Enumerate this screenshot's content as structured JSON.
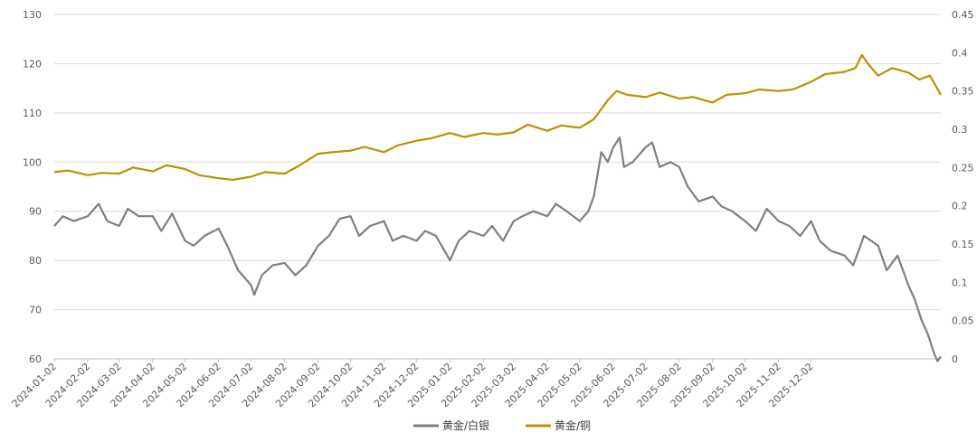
{
  "chart_data": {
    "type": "line",
    "title": "",
    "legend_position": "bottom",
    "grid": true,
    "x_ticks": [
      "2024-01-02",
      "2024-02-02",
      "2024-03-02",
      "2024-04-02",
      "2024-05-02",
      "2024-06-02",
      "2024-07-02",
      "2024-08-02",
      "2024-09-02",
      "2024-10-02",
      "2024-11-02",
      "2024-12-02",
      "2025-01-02",
      "2025-02-02",
      "2025-03-02",
      "2025-04-02",
      "2025-05-02",
      "2025-06-02",
      "2025-07-02",
      "2025-08-02",
      "2025-09-02",
      "2025-10-02",
      "2025-11-02",
      "2025-12-02"
    ],
    "y_left": {
      "min": 60,
      "max": 130,
      "ticks": [
        "60",
        "70",
        "80",
        "90",
        "100",
        "110",
        "120",
        "130"
      ]
    },
    "y_right": {
      "min": 0,
      "max": 0.45,
      "ticks": [
        "0",
        "0.05",
        "0.1",
        "0.15",
        "0.2",
        "0.25",
        "0.3",
        "0.35",
        "0.4",
        "0.45"
      ]
    },
    "series": [
      {
        "name": "黄金/白银",
        "axis": "left",
        "color": "#7f7f7f",
        "points": [
          [
            "2024-01-02",
            87
          ],
          [
            "2024-01-10",
            89
          ],
          [
            "2024-01-20",
            88
          ],
          [
            "2024-02-02",
            89
          ],
          [
            "2024-02-12",
            91.5
          ],
          [
            "2024-02-20",
            88
          ],
          [
            "2024-03-02",
            87
          ],
          [
            "2024-03-10",
            90.5
          ],
          [
            "2024-03-20",
            89
          ],
          [
            "2024-04-02",
            89
          ],
          [
            "2024-04-10",
            86
          ],
          [
            "2024-04-20",
            89.5
          ],
          [
            "2024-05-02",
            84
          ],
          [
            "2024-05-10",
            83
          ],
          [
            "2024-05-20",
            85
          ],
          [
            "2024-06-02",
            86.5
          ],
          [
            "2024-06-10",
            83
          ],
          [
            "2024-06-20",
            78
          ],
          [
            "2024-07-02",
            75
          ],
          [
            "2024-07-05",
            73
          ],
          [
            "2024-07-12",
            77
          ],
          [
            "2024-07-22",
            79
          ],
          [
            "2024-08-02",
            79.5
          ],
          [
            "2024-08-12",
            77
          ],
          [
            "2024-08-22",
            79
          ],
          [
            "2024-09-02",
            83
          ],
          [
            "2024-09-12",
            85
          ],
          [
            "2024-09-22",
            88.5
          ],
          [
            "2024-10-02",
            89
          ],
          [
            "2024-10-10",
            85
          ],
          [
            "2024-10-20",
            87
          ],
          [
            "2024-11-02",
            88
          ],
          [
            "2024-11-10",
            84
          ],
          [
            "2024-11-20",
            85
          ],
          [
            "2024-12-02",
            84
          ],
          [
            "2024-12-10",
            86
          ],
          [
            "2024-12-20",
            85
          ],
          [
            "2025-01-02",
            80
          ],
          [
            "2025-01-10",
            84
          ],
          [
            "2025-01-20",
            86
          ],
          [
            "2025-02-02",
            85
          ],
          [
            "2025-02-10",
            87
          ],
          [
            "2025-02-20",
            84
          ],
          [
            "2025-03-02",
            88
          ],
          [
            "2025-03-10",
            89
          ],
          [
            "2025-03-20",
            90
          ],
          [
            "2025-04-02",
            89
          ],
          [
            "2025-04-10",
            91.5
          ],
          [
            "2025-04-20",
            90
          ],
          [
            "2025-05-02",
            88
          ],
          [
            "2025-05-10",
            90
          ],
          [
            "2025-05-15",
            93
          ],
          [
            "2025-05-22",
            102
          ],
          [
            "2025-05-28",
            100
          ],
          [
            "2025-06-02",
            103
          ],
          [
            "2025-06-08",
            105
          ],
          [
            "2025-06-12",
            99
          ],
          [
            "2025-06-20",
            100
          ],
          [
            "2025-07-02",
            103
          ],
          [
            "2025-07-08",
            104
          ],
          [
            "2025-07-15",
            99
          ],
          [
            "2025-07-25",
            100
          ],
          [
            "2025-08-02",
            99
          ],
          [
            "2025-08-10",
            95
          ],
          [
            "2025-08-20",
            92
          ],
          [
            "2025-09-02",
            93
          ],
          [
            "2025-09-10",
            91
          ],
          [
            "2025-09-20",
            90
          ],
          [
            "2025-10-02",
            88
          ],
          [
            "2025-10-12",
            86
          ],
          [
            "2025-10-22",
            90.5
          ],
          [
            "2025-11-02",
            88
          ],
          [
            "2025-11-12",
            87
          ],
          [
            "2025-11-22",
            85
          ],
          [
            "2025-12-02",
            88
          ],
          [
            "2025-12-10",
            84
          ],
          [
            "2025-12-20",
            82
          ],
          [
            "2026-01-02",
            81
          ],
          [
            "2026-01-10",
            79
          ],
          [
            "2026-01-20",
            85
          ],
          [
            "2026-02-02",
            83
          ],
          [
            "2026-02-10",
            78
          ],
          [
            "2026-02-20",
            81
          ],
          [
            "2026-03-02",
            75
          ],
          [
            "2026-03-08",
            72
          ],
          [
            "2026-03-14",
            68
          ],
          [
            "2026-03-20",
            65
          ],
          [
            "2026-03-26",
            61
          ],
          [
            "2026-03-29",
            59.5
          ],
          [
            "2026-04-01",
            60.5
          ]
        ]
      },
      {
        "name": "黄金/铜",
        "axis": "right",
        "color": "#bf9000",
        "points": [
          [
            "2024-01-02",
            0.244
          ],
          [
            "2024-01-15",
            0.246
          ],
          [
            "2024-02-02",
            0.24
          ],
          [
            "2024-02-15",
            0.243
          ],
          [
            "2024-03-02",
            0.242
          ],
          [
            "2024-03-15",
            0.25
          ],
          [
            "2024-04-02",
            0.245
          ],
          [
            "2024-04-15",
            0.253
          ],
          [
            "2024-05-02",
            0.248
          ],
          [
            "2024-05-15",
            0.24
          ],
          [
            "2024-06-02",
            0.236
          ],
          [
            "2024-06-15",
            0.234
          ],
          [
            "2024-07-02",
            0.238
          ],
          [
            "2024-07-15",
            0.244
          ],
          [
            "2024-08-02",
            0.242
          ],
          [
            "2024-08-15",
            0.252
          ],
          [
            "2024-09-02",
            0.268
          ],
          [
            "2024-09-15",
            0.27
          ],
          [
            "2024-10-02",
            0.272
          ],
          [
            "2024-10-15",
            0.277
          ],
          [
            "2024-11-02",
            0.27
          ],
          [
            "2024-11-15",
            0.279
          ],
          [
            "2024-12-02",
            0.285
          ],
          [
            "2024-12-15",
            0.288
          ],
          [
            "2025-01-02",
            0.295
          ],
          [
            "2025-01-15",
            0.29
          ],
          [
            "2025-02-02",
            0.295
          ],
          [
            "2025-02-15",
            0.293
          ],
          [
            "2025-03-02",
            0.296
          ],
          [
            "2025-03-15",
            0.306
          ],
          [
            "2025-04-02",
            0.298
          ],
          [
            "2025-04-15",
            0.305
          ],
          [
            "2025-05-02",
            0.302
          ],
          [
            "2025-05-15",
            0.313
          ],
          [
            "2025-05-28",
            0.338
          ],
          [
            "2025-06-05",
            0.35
          ],
          [
            "2025-06-15",
            0.345
          ],
          [
            "2025-07-02",
            0.342
          ],
          [
            "2025-07-15",
            0.348
          ],
          [
            "2025-08-02",
            0.34
          ],
          [
            "2025-08-15",
            0.342
          ],
          [
            "2025-09-02",
            0.335
          ],
          [
            "2025-09-15",
            0.345
          ],
          [
            "2025-10-02",
            0.347
          ],
          [
            "2025-10-15",
            0.352
          ],
          [
            "2025-11-02",
            0.35
          ],
          [
            "2025-11-15",
            0.352
          ],
          [
            "2025-12-02",
            0.362
          ],
          [
            "2025-12-15",
            0.372
          ],
          [
            "2026-01-02",
            0.375
          ],
          [
            "2026-01-12",
            0.38
          ],
          [
            "2026-01-18",
            0.397
          ],
          [
            "2026-01-24",
            0.385
          ],
          [
            "2026-02-02",
            0.37
          ],
          [
            "2026-02-15",
            0.38
          ],
          [
            "2026-03-02",
            0.374
          ],
          [
            "2026-03-12",
            0.365
          ],
          [
            "2026-03-22",
            0.37
          ],
          [
            "2026-04-01",
            0.345
          ]
        ]
      }
    ]
  }
}
